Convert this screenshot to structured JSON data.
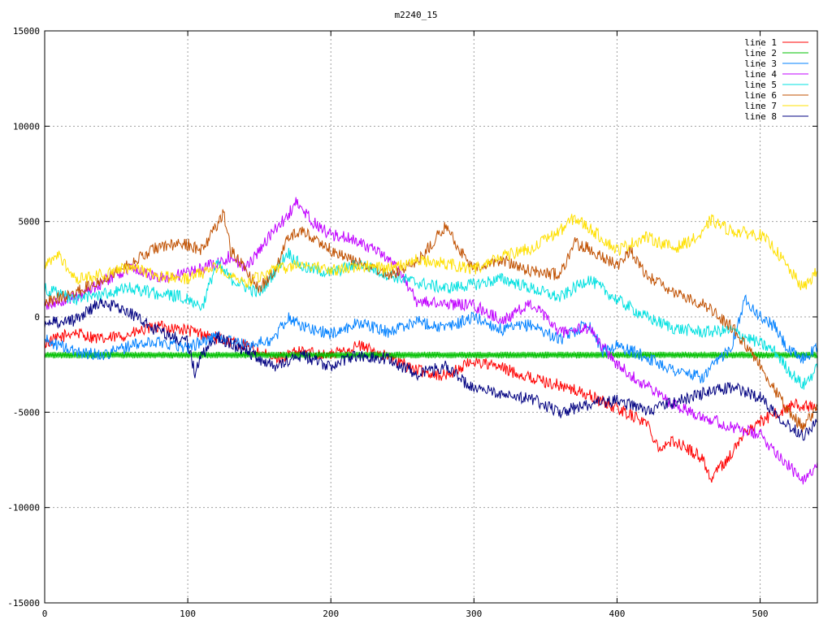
{
  "chart_data": {
    "type": "line",
    "title": "m2240_15",
    "xlabel": "",
    "ylabel": "",
    "xlim": [
      0,
      540
    ],
    "ylim": [
      -15000,
      15000
    ],
    "x_ticks": [
      0,
      100,
      200,
      300,
      400,
      500
    ],
    "y_ticks": [
      -15000,
      -10000,
      -5000,
      0,
      5000,
      10000,
      15000
    ],
    "grid": true,
    "legend_position": "top-right",
    "series": [
      {
        "name": "line 1",
        "color": "#ff0000",
        "points": [
          [
            0,
            -1400
          ],
          [
            20,
            -800
          ],
          [
            40,
            -1200
          ],
          [
            60,
            -900
          ],
          [
            80,
            -500
          ],
          [
            100,
            -700
          ],
          [
            120,
            -1100
          ],
          [
            140,
            -1500
          ],
          [
            160,
            -2200
          ],
          [
            180,
            -1800
          ],
          [
            200,
            -2000
          ],
          [
            220,
            -1500
          ],
          [
            240,
            -2100
          ],
          [
            260,
            -2800
          ],
          [
            280,
            -3100
          ],
          [
            300,
            -2300
          ],
          [
            320,
            -2700
          ],
          [
            340,
            -3200
          ],
          [
            360,
            -3600
          ],
          [
            380,
            -4100
          ],
          [
            400,
            -4800
          ],
          [
            420,
            -5500
          ],
          [
            430,
            -6900
          ],
          [
            440,
            -6500
          ],
          [
            460,
            -7400
          ],
          [
            465,
            -8500
          ],
          [
            480,
            -7200
          ],
          [
            490,
            -6000
          ],
          [
            500,
            -5500
          ],
          [
            510,
            -5100
          ],
          [
            525,
            -4600
          ],
          [
            540,
            -4800
          ]
        ]
      },
      {
        "name": "line 2",
        "color": "#00c000",
        "points": [
          [
            0,
            -2000
          ],
          [
            50,
            -2000
          ],
          [
            100,
            -2000
          ],
          [
            150,
            -2000
          ],
          [
            200,
            -2000
          ],
          [
            250,
            -2000
          ],
          [
            300,
            -2000
          ],
          [
            350,
            -2000
          ],
          [
            400,
            -2000
          ],
          [
            450,
            -2000
          ],
          [
            500,
            -2000
          ],
          [
            540,
            -2000
          ]
        ]
      },
      {
        "name": "line 3",
        "color": "#0080ff",
        "points": [
          [
            0,
            -1200
          ],
          [
            20,
            -1800
          ],
          [
            40,
            -2000
          ],
          [
            60,
            -1500
          ],
          [
            80,
            -1300
          ],
          [
            100,
            -1600
          ],
          [
            120,
            -1000
          ],
          [
            140,
            -1500
          ],
          [
            160,
            -1200
          ],
          [
            170,
            0
          ],
          [
            180,
            -500
          ],
          [
            200,
            -900
          ],
          [
            220,
            -300
          ],
          [
            240,
            -800
          ],
          [
            260,
            -200
          ],
          [
            280,
            -600
          ],
          [
            300,
            0
          ],
          [
            320,
            -700
          ],
          [
            340,
            -400
          ],
          [
            360,
            -1200
          ],
          [
            380,
            -300
          ],
          [
            390,
            -1800
          ],
          [
            400,
            -1500
          ],
          [
            420,
            -2100
          ],
          [
            440,
            -2800
          ],
          [
            460,
            -3200
          ],
          [
            480,
            -1500
          ],
          [
            490,
            1000
          ],
          [
            500,
            0
          ],
          [
            510,
            -500
          ],
          [
            520,
            -1800
          ],
          [
            530,
            -2200
          ],
          [
            540,
            -1600
          ]
        ]
      },
      {
        "name": "line 4",
        "color": "#c000ff",
        "points": [
          [
            0,
            600
          ],
          [
            20,
            1000
          ],
          [
            40,
            1800
          ],
          [
            60,
            2600
          ],
          [
            80,
            2000
          ],
          [
            100,
            2300
          ],
          [
            120,
            2800
          ],
          [
            130,
            3200
          ],
          [
            140,
            2500
          ],
          [
            160,
            4500
          ],
          [
            170,
            5300
          ],
          [
            175,
            6000
          ],
          [
            190,
            4800
          ],
          [
            200,
            4300
          ],
          [
            220,
            4000
          ],
          [
            240,
            3000
          ],
          [
            250,
            2200
          ],
          [
            260,
            800
          ],
          [
            280,
            700
          ],
          [
            300,
            600
          ],
          [
            320,
            -200
          ],
          [
            340,
            700
          ],
          [
            360,
            -800
          ],
          [
            380,
            -600
          ],
          [
            400,
            -2500
          ],
          [
            420,
            -3600
          ],
          [
            440,
            -4600
          ],
          [
            460,
            -5200
          ],
          [
            480,
            -5800
          ],
          [
            500,
            -6200
          ],
          [
            520,
            -7800
          ],
          [
            530,
            -8700
          ],
          [
            540,
            -7600
          ]
        ]
      },
      {
        "name": "line 5",
        "color": "#00e0e0",
        "points": [
          [
            0,
            1500
          ],
          [
            20,
            900
          ],
          [
            40,
            1200
          ],
          [
            60,
            1500
          ],
          [
            80,
            1200
          ],
          [
            100,
            1000
          ],
          [
            110,
            500
          ],
          [
            120,
            2800
          ],
          [
            130,
            2000
          ],
          [
            150,
            1200
          ],
          [
            170,
            3400
          ],
          [
            180,
            2600
          ],
          [
            200,
            2300
          ],
          [
            220,
            2800
          ],
          [
            240,
            2200
          ],
          [
            260,
            1800
          ],
          [
            280,
            1500
          ],
          [
            300,
            1700
          ],
          [
            320,
            2000
          ],
          [
            340,
            1500
          ],
          [
            360,
            1000
          ],
          [
            380,
            2000
          ],
          [
            400,
            900
          ],
          [
            420,
            0
          ],
          [
            440,
            -600
          ],
          [
            460,
            -800
          ],
          [
            480,
            -700
          ],
          [
            500,
            -1400
          ],
          [
            510,
            -1800
          ],
          [
            520,
            -2800
          ],
          [
            530,
            -3600
          ],
          [
            540,
            -2700
          ]
        ]
      },
      {
        "name": "line 6",
        "color": "#c05000",
        "points": [
          [
            0,
            800
          ],
          [
            20,
            1200
          ],
          [
            40,
            2000
          ],
          [
            60,
            2800
          ],
          [
            80,
            3700
          ],
          [
            100,
            3800
          ],
          [
            110,
            3500
          ],
          [
            120,
            4800
          ],
          [
            125,
            5500
          ],
          [
            130,
            3500
          ],
          [
            140,
            2500
          ],
          [
            150,
            1500
          ],
          [
            160,
            2300
          ],
          [
            170,
            4200
          ],
          [
            180,
            4500
          ],
          [
            200,
            3500
          ],
          [
            220,
            2800
          ],
          [
            240,
            2200
          ],
          [
            260,
            2800
          ],
          [
            280,
            4800
          ],
          [
            290,
            3500
          ],
          [
            300,
            2500
          ],
          [
            320,
            3000
          ],
          [
            340,
            2400
          ],
          [
            360,
            2200
          ],
          [
            370,
            3900
          ],
          [
            380,
            3600
          ],
          [
            400,
            2700
          ],
          [
            410,
            3500
          ],
          [
            420,
            2200
          ],
          [
            440,
            1200
          ],
          [
            460,
            700
          ],
          [
            480,
            -500
          ],
          [
            500,
            -2500
          ],
          [
            510,
            -3800
          ],
          [
            520,
            -5000
          ],
          [
            530,
            -5800
          ],
          [
            540,
            -4700
          ]
        ]
      },
      {
        "name": "line 7",
        "color": "#ffe000",
        "points": [
          [
            0,
            2600
          ],
          [
            10,
            3300
          ],
          [
            20,
            2000
          ],
          [
            40,
            2200
          ],
          [
            60,
            2600
          ],
          [
            80,
            2100
          ],
          [
            100,
            2000
          ],
          [
            120,
            2600
          ],
          [
            140,
            1800
          ],
          [
            160,
            2400
          ],
          [
            180,
            2800
          ],
          [
            200,
            2400
          ],
          [
            220,
            2700
          ],
          [
            240,
            2500
          ],
          [
            260,
            3000
          ],
          [
            280,
            2800
          ],
          [
            300,
            2500
          ],
          [
            320,
            3200
          ],
          [
            340,
            3600
          ],
          [
            360,
            4500
          ],
          [
            370,
            5200
          ],
          [
            380,
            4700
          ],
          [
            400,
            3500
          ],
          [
            420,
            4200
          ],
          [
            440,
            3600
          ],
          [
            460,
            4300
          ],
          [
            465,
            5100
          ],
          [
            480,
            4500
          ],
          [
            500,
            4300
          ],
          [
            510,
            3600
          ],
          [
            520,
            2500
          ],
          [
            530,
            1500
          ],
          [
            540,
            2400
          ]
        ]
      },
      {
        "name": "line 8",
        "color": "#000080",
        "points": [
          [
            0,
            -300
          ],
          [
            20,
            -200
          ],
          [
            40,
            800
          ],
          [
            60,
            200
          ],
          [
            80,
            -800
          ],
          [
            100,
            -1300
          ],
          [
            105,
            -3000
          ],
          [
            110,
            -2000
          ],
          [
            120,
            -1000
          ],
          [
            140,
            -1800
          ],
          [
            150,
            -2200
          ],
          [
            160,
            -2600
          ],
          [
            180,
            -2000
          ],
          [
            200,
            -2600
          ],
          [
            220,
            -2000
          ],
          [
            240,
            -2200
          ],
          [
            260,
            -3000
          ],
          [
            280,
            -2600
          ],
          [
            300,
            -3800
          ],
          [
            320,
            -4000
          ],
          [
            340,
            -4300
          ],
          [
            360,
            -5000
          ],
          [
            380,
            -4600
          ],
          [
            400,
            -4400
          ],
          [
            420,
            -4900
          ],
          [
            440,
            -4500
          ],
          [
            460,
            -4000
          ],
          [
            480,
            -3700
          ],
          [
            500,
            -4200
          ],
          [
            520,
            -5700
          ],
          [
            530,
            -6200
          ],
          [
            540,
            -5500
          ]
        ]
      }
    ]
  }
}
